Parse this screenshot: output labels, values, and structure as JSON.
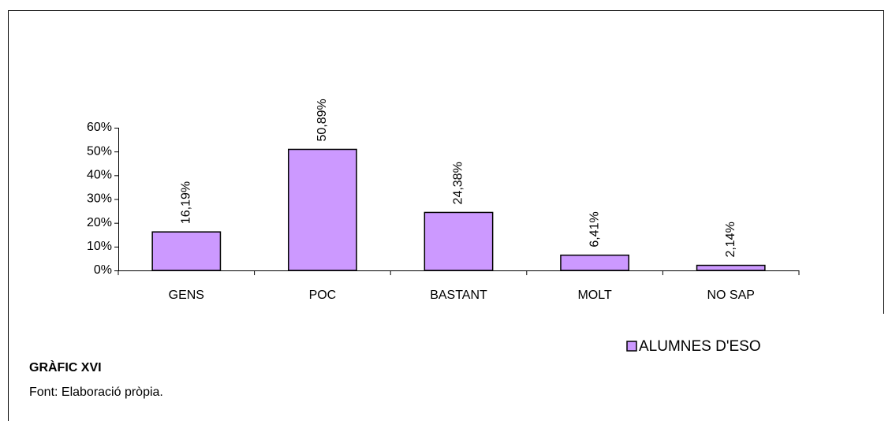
{
  "chart_data": {
    "type": "bar",
    "categories": [
      "GENS",
      "POC",
      "BASTANT",
      "MOLT",
      "NO SAP"
    ],
    "series": [
      {
        "name": "ALUMNES D'ESO",
        "color": "#cc99ff",
        "values": [
          16.19,
          50.89,
          24.38,
          6.41,
          2.14
        ],
        "value_labels": [
          "16,19%",
          "50,89%",
          "24,38%",
          "6,41%",
          "2,14%"
        ]
      }
    ],
    "ylim": [
      0,
      60
    ],
    "yticks": [
      {
        "value": 0,
        "label": "0%"
      },
      {
        "value": 10,
        "label": "10%"
      },
      {
        "value": 20,
        "label": "20%"
      },
      {
        "value": 30,
        "label": "30%"
      },
      {
        "value": 40,
        "label": "40%"
      },
      {
        "value": 50,
        "label": "50%"
      },
      {
        "value": 60,
        "label": "60%"
      }
    ],
    "legend": "bottom-right",
    "caption": "GRÀFIC XVI",
    "source": "Font: Elaboració pròpia."
  }
}
